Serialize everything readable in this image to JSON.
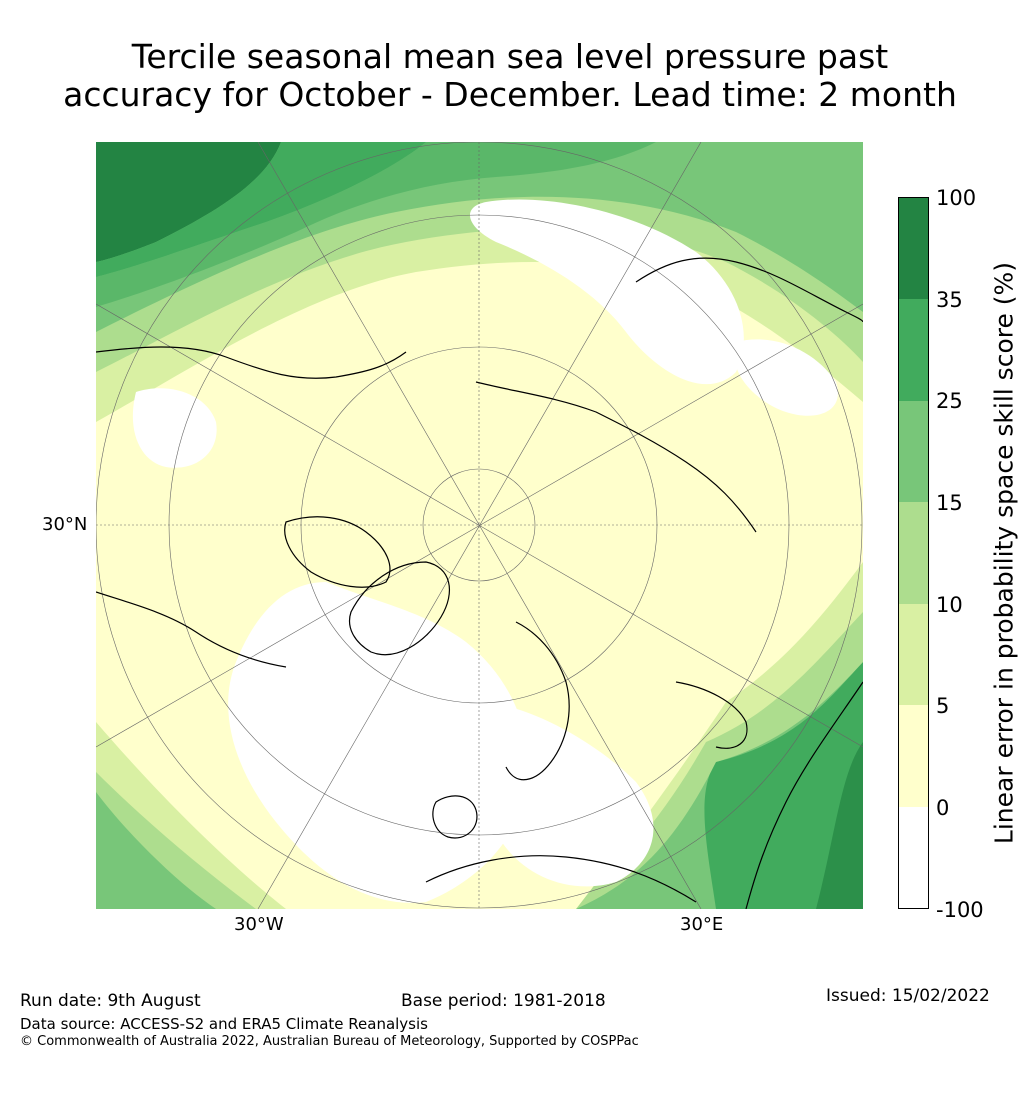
{
  "title": {
    "line1": "Tercile seasonal mean sea level pressure past",
    "line2": "accuracy for October - December. Lead time: 2 month"
  },
  "map": {
    "projection": "north-polar-stereographic",
    "lat_label": "30°N",
    "lon_labels": {
      "west": "30°W",
      "east": "30°E"
    }
  },
  "colorbar": {
    "label": "Linear error in probability space skill score (%)",
    "ticks": [
      "100",
      "35",
      "25",
      "15",
      "10",
      "5",
      "0",
      "-100"
    ],
    "bins": [
      {
        "from": "35",
        "to": "100",
        "color": "#238443"
      },
      {
        "from": "25",
        "to": "35",
        "color": "#41ab5d"
      },
      {
        "from": "15",
        "to": "25",
        "color": "#78c679"
      },
      {
        "from": "10",
        "to": "15",
        "color": "#addd8e"
      },
      {
        "from": "5",
        "to": "10",
        "color": "#d9f0a3"
      },
      {
        "from": "0",
        "to": "5",
        "color": "#ffffcc"
      },
      {
        "from": "-100",
        "to": "0",
        "color": "#ffffff"
      }
    ]
  },
  "footer": {
    "run_date": "Run date: 9th August",
    "base_period": "Base period: 1981-2018",
    "issued": "Issued: 15/02/2022",
    "source": "Data source: ACCESS-S2 and ERA5 Climate Reanalysis",
    "copyright": "© Commonwealth of Australia 2022, Australian Bureau of Meteorology, Supported by COSPPac"
  }
}
